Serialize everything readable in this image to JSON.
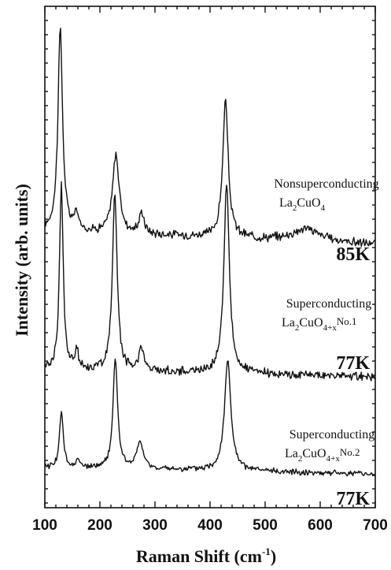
{
  "chart_data": {
    "type": "line",
    "xlabel": "Raman Shift (cm-1)",
    "xlabel_main": "Raman Shift (cm",
    "xlabel_sup": "-1",
    "xlabel_close": ")",
    "ylabel": "Intensity (arb. units)",
    "xlim": [
      100,
      700
    ],
    "x_ticks": [
      "100",
      "200",
      "300",
      "400",
      "500",
      "600",
      "700"
    ],
    "y_tick_labels": false,
    "grid": false,
    "legend": "none",
    "series": [
      {
        "line1": "Nonsuperconducting",
        "formula_parts": [
          "La",
          "2",
          "CuO",
          "4",
          ""
        ],
        "temperature": "85K",
        "peaks": [
          {
            "x": 128,
            "height": 0.95,
            "width": 5
          },
          {
            "x": 157,
            "height": 0.08,
            "width": 4
          },
          {
            "x": 229,
            "height": 0.37,
            "width": 7
          },
          {
            "x": 276,
            "height": 0.1,
            "width": 5
          },
          {
            "x": 428,
            "height": 0.64,
            "width": 6
          },
          {
            "x": 575,
            "height": 0.06,
            "width": 30
          }
        ]
      },
      {
        "line1": "Superconducting",
        "formula_parts": [
          "La",
          "2",
          "CuO",
          "4+x",
          "No.1"
        ],
        "temperature": "77K",
        "peaks": [
          {
            "x": 130,
            "height": 0.9,
            "width": 4
          },
          {
            "x": 158,
            "height": 0.1,
            "width": 3
          },
          {
            "x": 227,
            "height": 0.88,
            "width": 5
          },
          {
            "x": 275,
            "height": 0.12,
            "width": 5
          },
          {
            "x": 430,
            "height": 0.92,
            "width": 6
          }
        ]
      },
      {
        "line1": "Superconducting",
        "formula_parts": [
          "La",
          "2",
          "CuO",
          "4+x",
          "No.2"
        ],
        "temperature": "77K",
        "peaks": [
          {
            "x": 130,
            "height": 0.42,
            "width": 4
          },
          {
            "x": 160,
            "height": 0.08,
            "width": 3
          },
          {
            "x": 228,
            "height": 0.82,
            "width": 5
          },
          {
            "x": 273,
            "height": 0.2,
            "width": 7
          },
          {
            "x": 432,
            "height": 0.82,
            "width": 7
          }
        ]
      }
    ]
  }
}
